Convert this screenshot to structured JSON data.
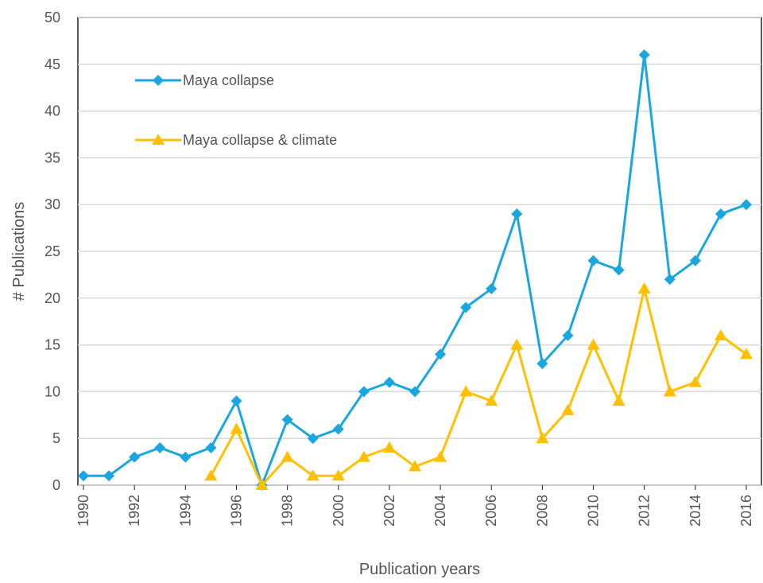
{
  "chart_data": {
    "type": "line",
    "x": [
      1990,
      1991,
      1992,
      1993,
      1994,
      1995,
      1996,
      1997,
      1998,
      1999,
      2000,
      2001,
      2002,
      2003,
      2004,
      2005,
      2006,
      2007,
      2008,
      2009,
      2010,
      2011,
      2012,
      2013,
      2014,
      2015,
      2016
    ],
    "series": [
      {
        "name": "Maya collapse",
        "color": "#1aa7e0",
        "marker": "diamond",
        "values": [
          1,
          1,
          3,
          4,
          3,
          4,
          9,
          0,
          7,
          5,
          6,
          10,
          11,
          10,
          14,
          19,
          21,
          29,
          13,
          16,
          24,
          23,
          46,
          22,
          24,
          29,
          30
        ]
      },
      {
        "name": "Maya collapse & climate",
        "color": "#ffc000",
        "marker": "triangle",
        "values": [
          null,
          null,
          null,
          null,
          null,
          1,
          6,
          0,
          3,
          1,
          1,
          3,
          4,
          2,
          3,
          10,
          9,
          15,
          5,
          8,
          15,
          9,
          21,
          10,
          11,
          16,
          14
        ]
      }
    ],
    "xlabel": "Publication years",
    "ylabel": "# Publications",
    "xlim": [
      1990,
      2016
    ],
    "xticks": [
      1990,
      1992,
      1994,
      1996,
      1998,
      2000,
      2002,
      2004,
      2006,
      2008,
      2010,
      2012,
      2014,
      2016
    ],
    "ylim": [
      0,
      50
    ],
    "yticks": [
      0,
      5,
      10,
      15,
      20,
      25,
      30,
      35,
      40,
      45,
      50
    ],
    "grid": true,
    "legend": "upper left"
  }
}
